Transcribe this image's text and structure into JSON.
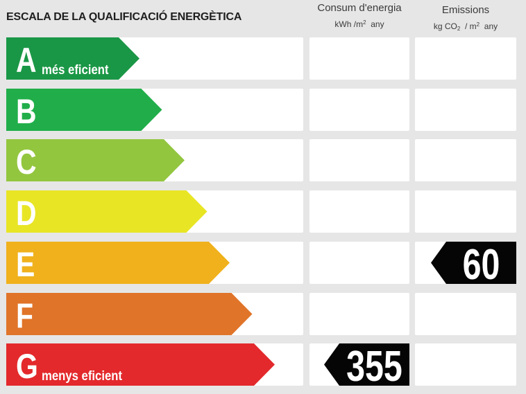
{
  "title": "ESCALA DE LA QUALIFICACIÓ ENERGÈTICA",
  "columns": {
    "consum": {
      "line1": "Consum d'energia",
      "unit_pre": "kWh /m",
      "unit_sup": "2",
      "unit_post": "  any"
    },
    "emissions": {
      "line1": "Emissions",
      "unit_pre": "kg CO",
      "unit_sub": "2",
      "unit_mid": "  / m",
      "unit_sup": "2",
      "unit_post": "  any"
    }
  },
  "chart_data": {
    "type": "table",
    "classes": [
      {
        "letter": "A",
        "label": "més eficient",
        "color": "#1a9746"
      },
      {
        "letter": "B",
        "label": "",
        "color": "#21ae4a"
      },
      {
        "letter": "C",
        "label": "",
        "color": "#93c63f"
      },
      {
        "letter": "D",
        "label": "",
        "color": "#e8e525"
      },
      {
        "letter": "E",
        "label": "",
        "color": "#f0b11c"
      },
      {
        "letter": "F",
        "label": "",
        "color": "#e07429"
      },
      {
        "letter": "G",
        "label": "menys eficient",
        "color": "#e3292c"
      }
    ],
    "consum_energia": {
      "class": "G",
      "value": "355"
    },
    "emissions": {
      "class": "E",
      "value": "60"
    }
  }
}
